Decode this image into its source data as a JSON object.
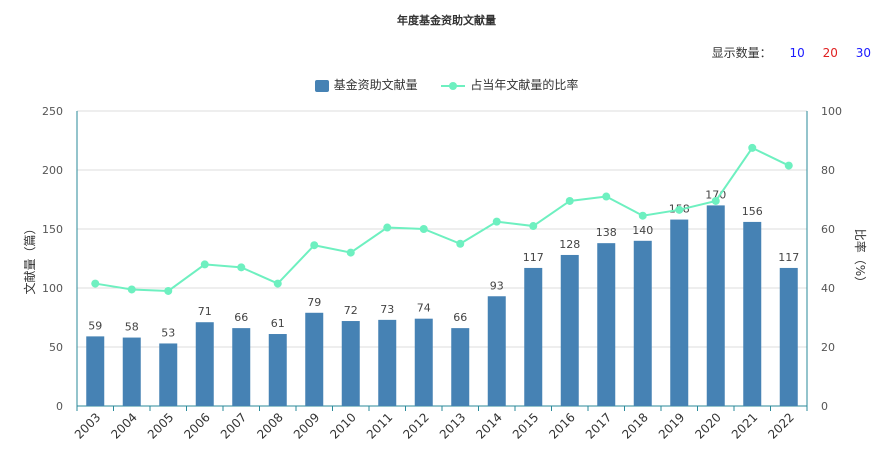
{
  "title": "年度基金资助文献量",
  "display_count": {
    "label": "显示数量：",
    "options": [
      "10",
      "20",
      "30"
    ],
    "colors": [
      "#1a1aff",
      "#e02020",
      "#1a1aff"
    ]
  },
  "chart_data": {
    "type": "bar",
    "categories": [
      "2003",
      "2004",
      "2005",
      "2006",
      "2007",
      "2008",
      "2009",
      "2010",
      "2011",
      "2012",
      "2013",
      "2014",
      "2015",
      "2016",
      "2017",
      "2018",
      "2019",
      "2020",
      "2021",
      "2022"
    ],
    "series": [
      {
        "name": "基金资助文献量",
        "type": "bar",
        "axis": "left",
        "color": "#4682b4",
        "values": [
          59,
          58,
          53,
          71,
          66,
          61,
          79,
          72,
          73,
          74,
          66,
          93,
          117,
          128,
          138,
          140,
          158,
          170,
          156,
          117
        ]
      },
      {
        "name": "占当年文献量的比率",
        "type": "line",
        "axis": "right",
        "color": "#6ef0c0",
        "values": [
          41.5,
          39.5,
          39,
          48,
          47,
          41.5,
          54.5,
          52,
          60.5,
          60,
          55,
          62.5,
          61,
          69.5,
          71,
          64.5,
          66.5,
          69.5,
          87.5,
          81.5
        ]
      }
    ],
    "ylabel_left": "文献量（篇）",
    "ylabel_right": "比率（%）",
    "ylim_left": [
      0,
      250
    ],
    "ylim_right": [
      0,
      100
    ],
    "yticks_left": [
      "0",
      "50",
      "100",
      "150",
      "200",
      "250"
    ],
    "yticks_right": [
      "0",
      "20",
      "40",
      "60",
      "80",
      "100"
    ],
    "grid": true,
    "legend_position": "top-center"
  }
}
